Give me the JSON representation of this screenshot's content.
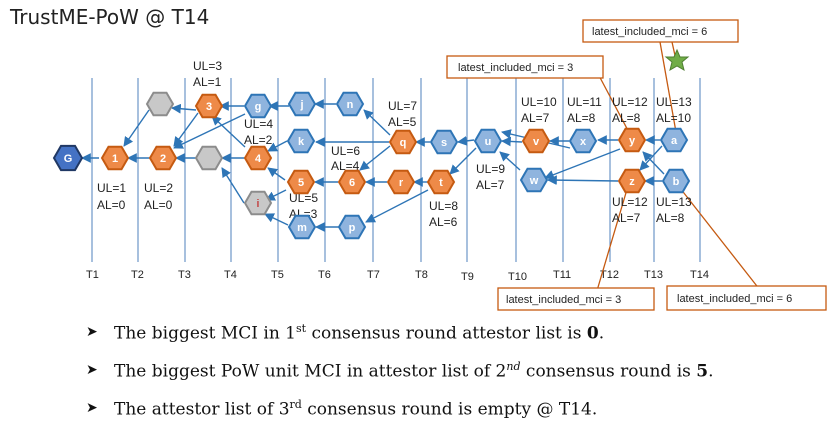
{
  "title": "TrustME-PoW @ T14",
  "timeline": [
    "T1",
    "T2",
    "T3",
    "T4",
    "T5",
    "T6",
    "T7",
    "T8",
    "T9",
    "T10",
    "T11",
    "T12",
    "T13",
    "T14"
  ],
  "nodes": [
    {
      "id": "G",
      "type": "genesis"
    },
    {
      "id": "1",
      "type": "pow"
    },
    {
      "id": "2",
      "type": "pow"
    },
    {
      "id": "3",
      "type": "pow"
    },
    {
      "id": "4",
      "type": "pow"
    },
    {
      "id": "5",
      "type": "pow"
    },
    {
      "id": "6",
      "type": "pow"
    },
    {
      "id": "r",
      "type": "pow"
    },
    {
      "id": "t",
      "type": "pow"
    },
    {
      "id": "q",
      "type": "pow"
    },
    {
      "id": "v",
      "type": "pow"
    },
    {
      "id": "y",
      "type": "pow"
    },
    {
      "id": "z",
      "type": "pow"
    },
    {
      "id": "g",
      "type": "normal"
    },
    {
      "id": "j",
      "type": "normal"
    },
    {
      "id": "n",
      "type": "normal"
    },
    {
      "id": "k",
      "type": "normal"
    },
    {
      "id": "m",
      "type": "normal"
    },
    {
      "id": "p",
      "type": "normal"
    },
    {
      "id": "s",
      "type": "normal"
    },
    {
      "id": "u",
      "type": "normal"
    },
    {
      "id": "w",
      "type": "normal"
    },
    {
      "id": "x",
      "type": "normal"
    },
    {
      "id": "a",
      "type": "normal"
    },
    {
      "id": "b",
      "type": "normal"
    },
    {
      "id": "i",
      "type": "gray"
    },
    {
      "id": "",
      "type": "gray"
    },
    {
      "id": "",
      "type": "gray"
    }
  ],
  "annotations": [
    "UL=3",
    "AL=1",
    "UL=4",
    "AL=2",
    "UL=6",
    "AL=4",
    "UL=5",
    "AL=3",
    "UL=7",
    "AL=5",
    "UL=1",
    "AL=0",
    "UL=2",
    "AL=0",
    "UL=8",
    "AL=6",
    "UL=9",
    "AL=7",
    "UL=10",
    "AL=7",
    "UL=11",
    "AL=8",
    "UL=12",
    "AL=8",
    "UL=13",
    "AL=10",
    "UL=12",
    "AL=7",
    "UL=13",
    "AL=8"
  ],
  "callouts": [
    {
      "text": "latest_included_mci = 6"
    },
    {
      "text": "latest_included_mci = 3"
    },
    {
      "text": "latest_included_mci = 3"
    },
    {
      "text": "latest_included_mci = 6"
    }
  ],
  "colors": {
    "pow_fill": "#ee8a48",
    "pow_stroke": "#c55a11",
    "normal_fill": "#8fb4de",
    "normal_stroke": "#2e75b6",
    "genesis_fill": "#4472c4",
    "genesis_stroke": "#203864",
    "gray_fill": "#c8c8c8",
    "gray_stroke": "#8c8c8c",
    "arrow": "#2e75b6",
    "callout_line": "#c55a11",
    "star": "#70ad47"
  },
  "bullets": [
    {
      "pre": "The biggest MCI in 1",
      "sup": "st",
      "post": " consensus round attestor list is ",
      "value": "0",
      "end": "."
    },
    {
      "pre": "The biggest PoW unit MCI in attestor list of 2",
      "sup": "nd",
      "post": " consensus round is ",
      "value": "5",
      "end": "."
    },
    {
      "pre": "The attestor list of 3",
      "sup": "rd",
      "post": " consensus round is empty @ T14.",
      "value": "",
      "end": ""
    }
  ]
}
